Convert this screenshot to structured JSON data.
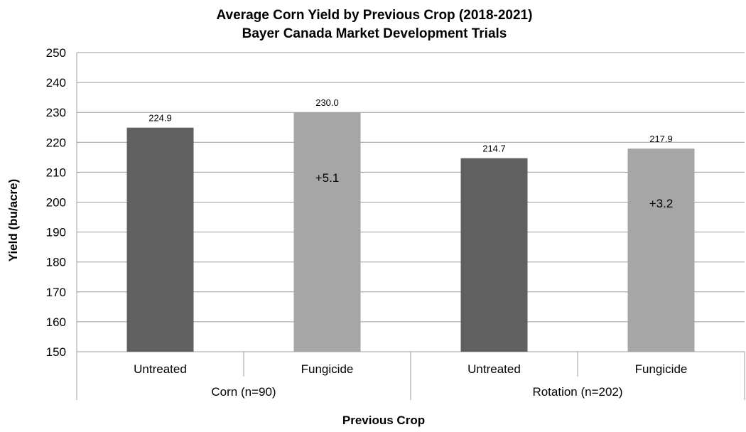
{
  "chart_data": {
    "type": "bar",
    "title": "Average Corn Yield by Previous Crop (2018-2021)",
    "subtitle": "Bayer Canada Market Development Trials",
    "xlabel": "Previous Crop",
    "ylabel": "Yield (bu/acre)",
    "ylim": [
      150,
      250
    ],
    "y_ticks": [
      "150",
      "160",
      "170",
      "180",
      "190",
      "200",
      "210",
      "220",
      "230",
      "240",
      "250"
    ],
    "grid": true,
    "legend": "none",
    "groups": [
      {
        "label": "Corn (n=90)",
        "bars": [
          {
            "category": "Untreated",
            "value": 224.9,
            "label": "224.9",
            "color": "#606060",
            "annotation": ""
          },
          {
            "category": "Fungicide",
            "value": 230.0,
            "label": "230.0",
            "color": "#a6a6a6",
            "annotation": "+5.1"
          }
        ]
      },
      {
        "label": "Rotation (n=202)",
        "bars": [
          {
            "category": "Untreated",
            "value": 214.7,
            "label": "214.7",
            "color": "#606060",
            "annotation": ""
          },
          {
            "category": "Fungicide",
            "value": 217.9,
            "label": "217.9",
            "color": "#a6a6a6",
            "annotation": "+3.2"
          }
        ]
      }
    ]
  }
}
